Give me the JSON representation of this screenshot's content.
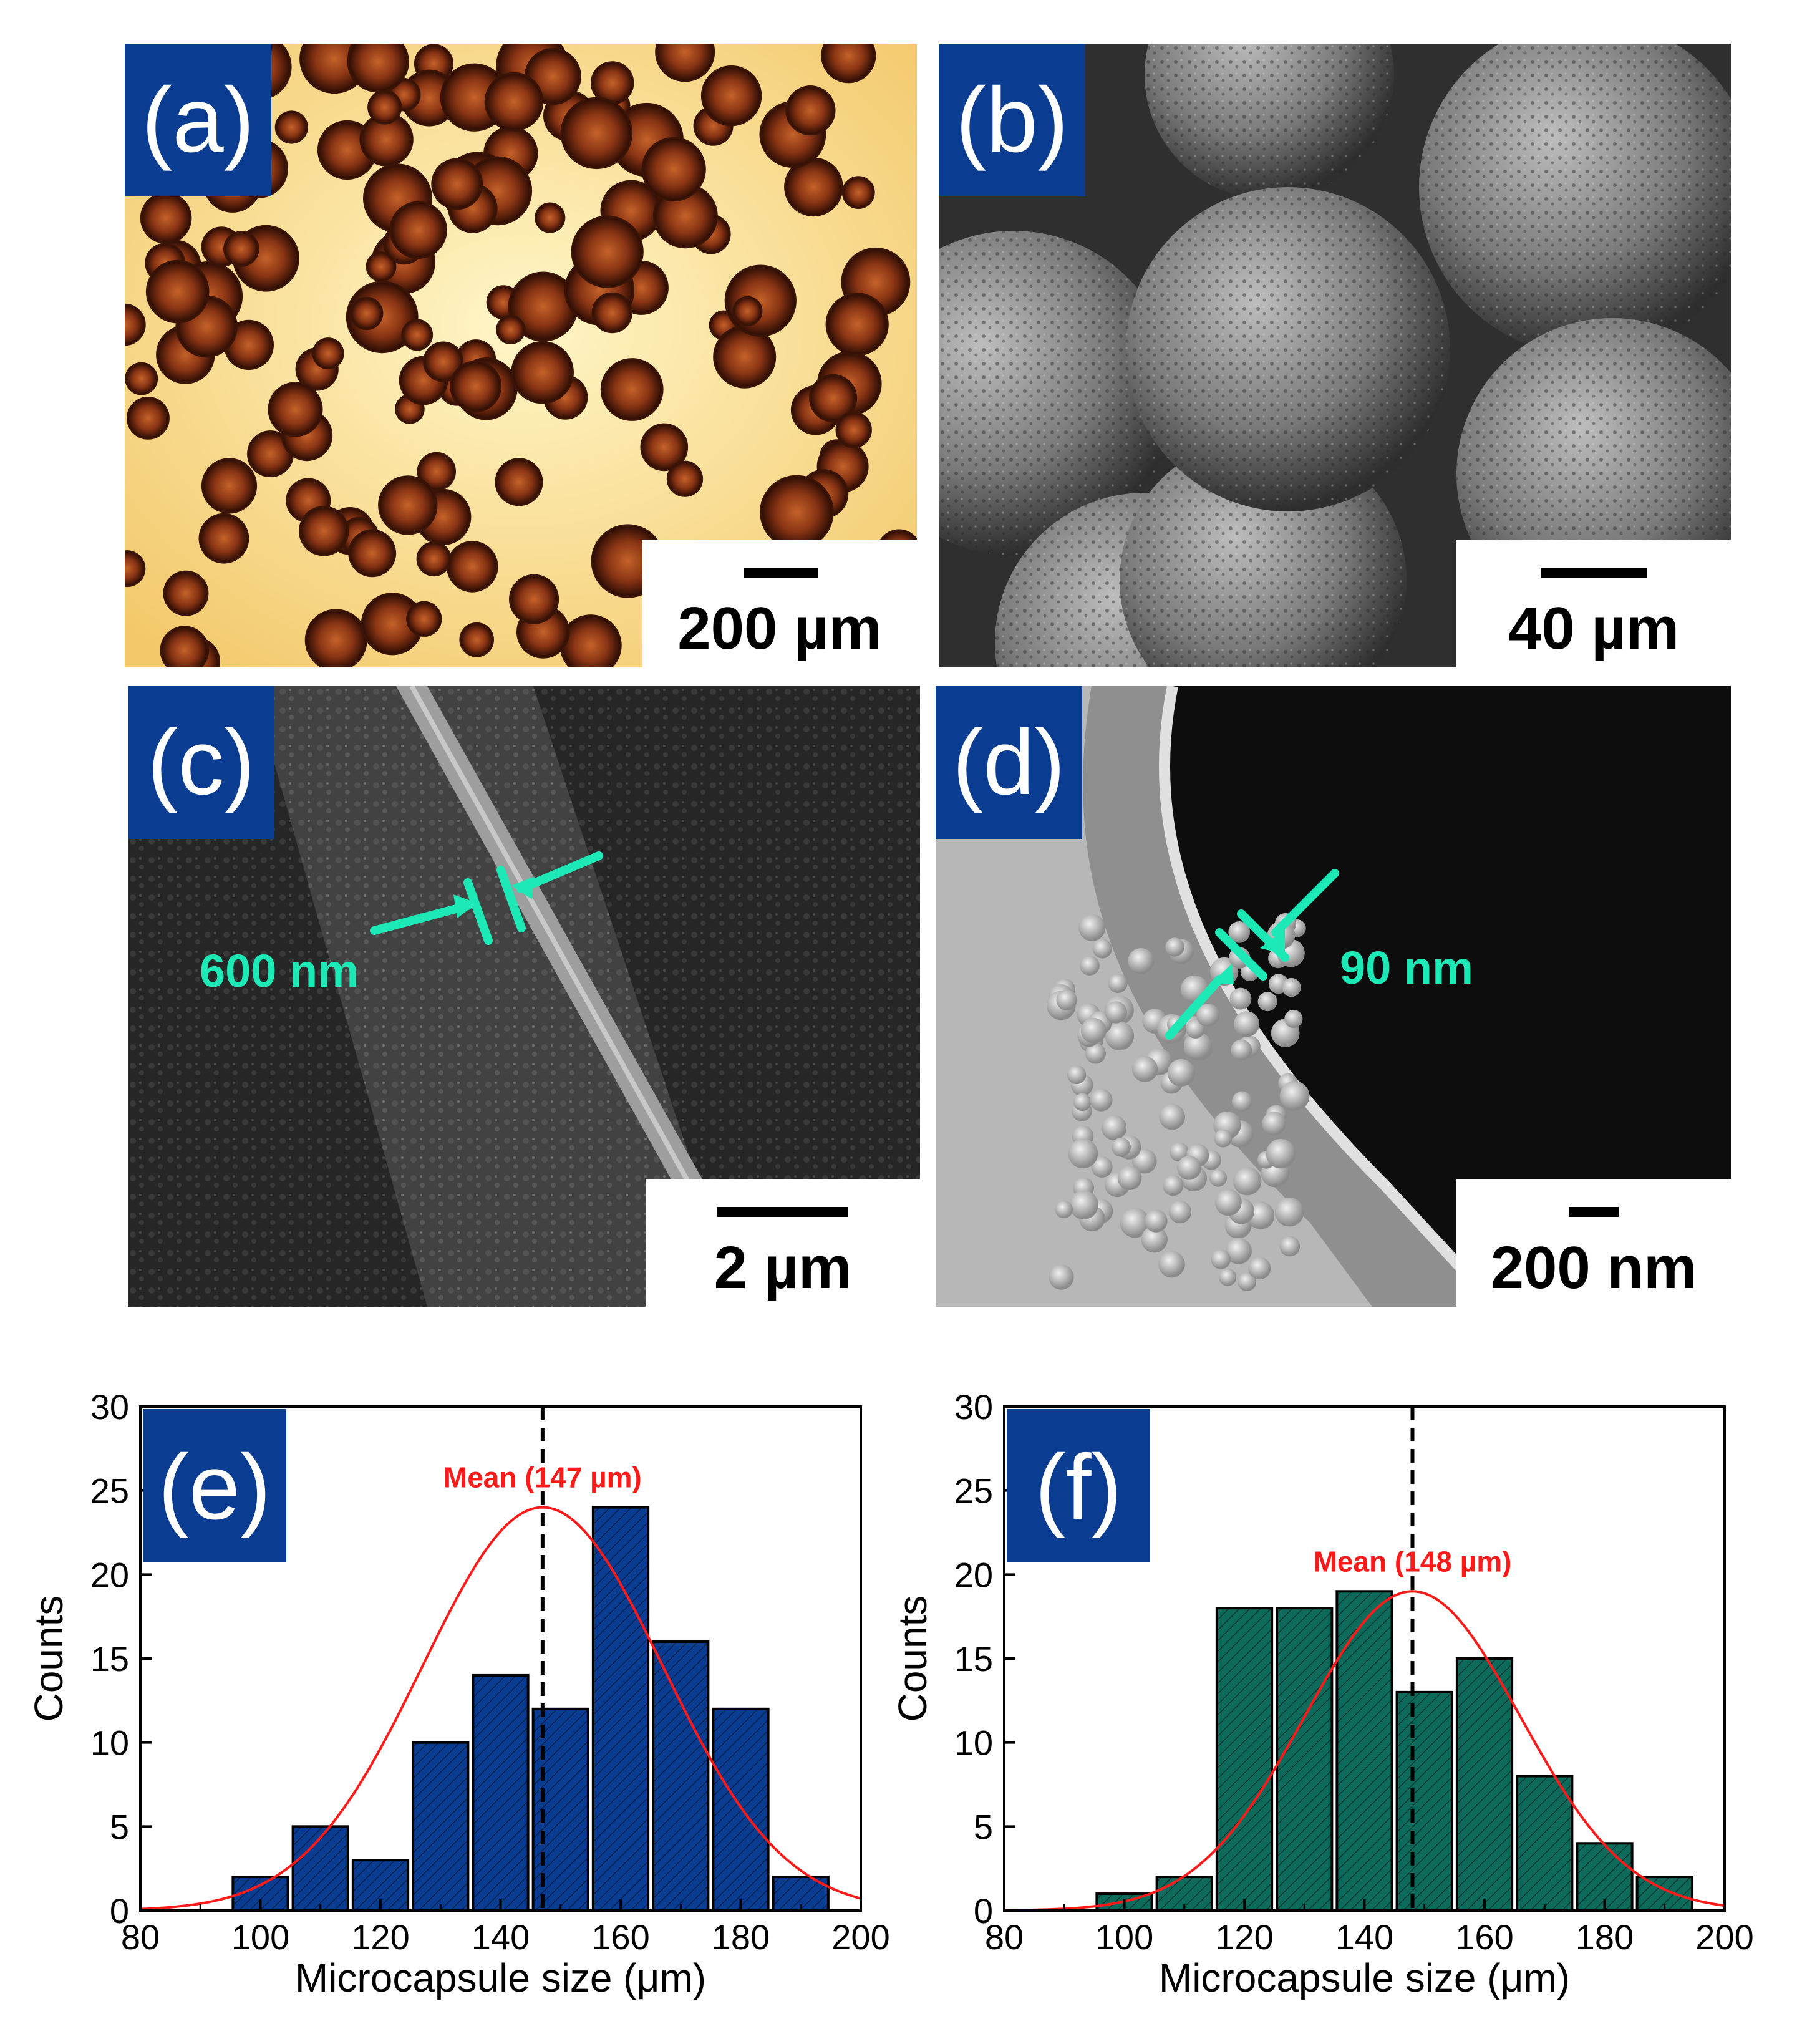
{
  "panels": {
    "a": {
      "label": "(a)",
      "scale": "200 µm",
      "kind": "optical micrograph of brown microcapsules on yellow background"
    },
    "b": {
      "label": "(b)",
      "scale": "40 µm",
      "kind": "SEM of spherical porous microcapsules"
    },
    "c": {
      "label": "(c)",
      "scale": "2 µm",
      "measure": "600 nm"
    },
    "d": {
      "label": "(d)",
      "scale": "200 nm",
      "measure": "90 nm"
    }
  },
  "colors": {
    "label_bg": "#0a3d91",
    "annotation": "#1de9b6",
    "fit_curve": "#ff1a1a",
    "bar_e": "#0a3d91",
    "bar_f": "#0e6b5c"
  },
  "chart_data": [
    {
      "type": "bar",
      "panel_label": "(e)",
      "xlabel": "Microcapsule size (μm)",
      "ylabel": "Counts",
      "xlim": [
        80,
        200
      ],
      "ylim": [
        0,
        30
      ],
      "xticks": [
        80,
        100,
        120,
        140,
        160,
        180,
        200
      ],
      "yticks": [
        0,
        5,
        10,
        15,
        20,
        25,
        30
      ],
      "bin_width": 10,
      "bins": [
        {
          "x": 100,
          "count": 2
        },
        {
          "x": 110,
          "count": 5
        },
        {
          "x": 120,
          "count": 3
        },
        {
          "x": 130,
          "count": 10
        },
        {
          "x": 140,
          "count": 14
        },
        {
          "x": 150,
          "count": 12
        },
        {
          "x": 160,
          "count": 24
        },
        {
          "x": 170,
          "count": 16
        },
        {
          "x": 180,
          "count": 12
        },
        {
          "x": 190,
          "count": 2
        }
      ],
      "fit": {
        "type": "gaussian",
        "mean": 147,
        "sigma": 20,
        "peak": 24
      },
      "mean_line": 147,
      "mean_label": "Mean (147 µm)"
    },
    {
      "type": "bar",
      "panel_label": "(f)",
      "xlabel": "Microcapsule size (μm)",
      "ylabel": "Counts",
      "xlim": [
        80,
        200
      ],
      "ylim": [
        0,
        30
      ],
      "xticks": [
        80,
        100,
        120,
        140,
        160,
        180,
        200
      ],
      "yticks": [
        0,
        5,
        10,
        15,
        20,
        25,
        30
      ],
      "bin_width": 10,
      "bins": [
        {
          "x": 100,
          "count": 1
        },
        {
          "x": 110,
          "count": 2
        },
        {
          "x": 120,
          "count": 18
        },
        {
          "x": 130,
          "count": 18
        },
        {
          "x": 140,
          "count": 19
        },
        {
          "x": 150,
          "count": 13
        },
        {
          "x": 160,
          "count": 15
        },
        {
          "x": 170,
          "count": 8
        },
        {
          "x": 180,
          "count": 4
        },
        {
          "x": 190,
          "count": 2
        }
      ],
      "fit": {
        "type": "gaussian",
        "mean": 148,
        "sigma": 18,
        "peak": 19
      },
      "mean_line": 148,
      "mean_label": "Mean (148 µm)"
    }
  ]
}
